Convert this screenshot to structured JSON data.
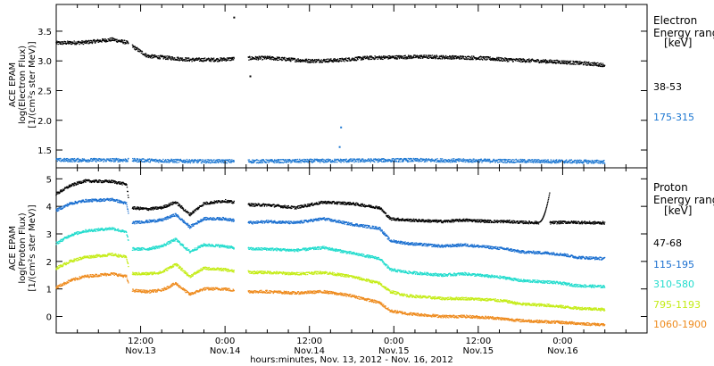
{
  "chart_data": [
    {
      "type": "scatter",
      "panel": "electron",
      "ylabel_lines": [
        "ACE EPAM",
        "log(Electron Flux)",
        "[1/(cm²s ster MeV)]"
      ],
      "legend_title": [
        "Electron",
        "Energy range",
        "[keV]"
      ],
      "ylim": [
        1.2,
        3.95
      ],
      "yticks": [
        1.5,
        2.0,
        2.5,
        3.0,
        3.5
      ],
      "ytick_labels": [
        "1.5",
        "2.0",
        "2.5",
        "3.0",
        "3.5"
      ],
      "series": [
        {
          "name": "38-53",
          "color": "#000000",
          "anchors": [
            [
              0,
              3.3
            ],
            [
              4,
              3.31
            ],
            [
              8,
              3.36
            ],
            [
              10,
              3.31
            ],
            [
              13,
              3.08
            ],
            [
              16,
              3.05
            ],
            [
              19,
              3.02
            ],
            [
              23,
              3.02
            ],
            [
              26,
              3.04
            ],
            [
              30,
              3.05
            ],
            [
              36,
              3.0
            ],
            [
              40,
              3.01
            ],
            [
              44,
              3.05
            ],
            [
              48,
              3.06
            ],
            [
              52,
              3.07
            ],
            [
              56,
              3.06
            ],
            [
              60,
              3.05
            ],
            [
              64,
              3.02
            ],
            [
              68,
              3.0
            ],
            [
              72,
              2.98
            ],
            [
              76,
              2.95
            ],
            [
              78,
              2.93
            ]
          ]
        },
        {
          "name": "175-315",
          "color": "#1e78d2",
          "anchors": [
            [
              0,
              1.33
            ],
            [
              10,
              1.33
            ],
            [
              20,
              1.31
            ],
            [
              30,
              1.31
            ],
            [
              40,
              1.32
            ],
            [
              50,
              1.33
            ],
            [
              60,
              1.32
            ],
            [
              70,
              1.31
            ],
            [
              78,
              1.3
            ]
          ]
        }
      ],
      "outliers": [
        [
          25.3,
          3.73
        ],
        [
          40.5,
          1.88
        ],
        [
          40.3,
          1.55
        ],
        [
          27.6,
          2.74
        ]
      ]
    },
    {
      "type": "scatter",
      "panel": "proton",
      "ylabel_lines": [
        "ACE EPAM",
        "log(Proton Flux)",
        "[1/(cm²s ster MeV)]"
      ],
      "legend_title": [
        "Proton",
        "Energy range",
        "[keV]"
      ],
      "ylim": [
        -0.6,
        5.4
      ],
      "yticks": [
        0,
        1,
        2,
        3,
        4,
        5
      ],
      "ytick_labels": [
        "0",
        "1",
        "2",
        "3",
        "4",
        "5"
      ],
      "series": [
        {
          "name": "47-68",
          "color": "#000000",
          "anchors": [
            [
              0,
              4.45
            ],
            [
              2,
              4.75
            ],
            [
              4,
              4.92
            ],
            [
              8,
              4.9
            ],
            [
              10,
              4.8
            ],
            [
              10.5,
              3.95
            ],
            [
              13,
              3.9
            ],
            [
              15,
              3.95
            ],
            [
              17,
              4.15
            ],
            [
              19,
              3.7
            ],
            [
              21,
              4.1
            ],
            [
              24,
              4.2
            ],
            [
              25,
              4.15
            ],
            [
              28,
              4.05
            ],
            [
              30,
              4.05
            ],
            [
              34,
              3.95
            ],
            [
              38,
              4.15
            ],
            [
              42,
              4.1
            ],
            [
              46,
              3.95
            ],
            [
              47.5,
              3.55
            ],
            [
              50,
              3.5
            ],
            [
              55,
              3.45
            ],
            [
              58,
              3.5
            ],
            [
              62,
              3.45
            ],
            [
              64,
              3.45
            ],
            [
              66,
              3.42
            ],
            [
              70,
              3.4
            ],
            [
              72,
              3.42
            ],
            [
              74,
              3.42
            ],
            [
              76,
              3.4
            ],
            [
              78,
              3.4
            ]
          ]
        },
        {
          "name": "115-195",
          "color": "#1a6fd0",
          "anchors": [
            [
              0,
              3.85
            ],
            [
              2,
              4.1
            ],
            [
              4,
              4.2
            ],
            [
              8,
              4.25
            ],
            [
              10,
              4.1
            ],
            [
              10.5,
              3.4
            ],
            [
              13,
              3.45
            ],
            [
              15,
              3.5
            ],
            [
              17,
              3.7
            ],
            [
              19,
              3.25
            ],
            [
              21,
              3.55
            ],
            [
              24,
              3.55
            ],
            [
              25,
              3.5
            ],
            [
              28,
              3.4
            ],
            [
              30,
              3.45
            ],
            [
              34,
              3.4
            ],
            [
              38,
              3.55
            ],
            [
              42,
              3.35
            ],
            [
              46,
              3.2
            ],
            [
              47.5,
              2.75
            ],
            [
              50,
              2.65
            ],
            [
              55,
              2.55
            ],
            [
              58,
              2.6
            ],
            [
              62,
              2.5
            ],
            [
              64,
              2.45
            ],
            [
              66,
              2.35
            ],
            [
              70,
              2.3
            ],
            [
              72,
              2.25
            ],
            [
              74,
              2.15
            ],
            [
              76,
              2.12
            ],
            [
              78,
              2.1
            ]
          ]
        },
        {
          "name": "310-580",
          "color": "#22dccd",
          "anchors": [
            [
              0,
              2.65
            ],
            [
              2,
              2.95
            ],
            [
              4,
              3.1
            ],
            [
              8,
              3.2
            ],
            [
              10,
              3.05
            ],
            [
              10.5,
              2.45
            ],
            [
              13,
              2.45
            ],
            [
              15,
              2.55
            ],
            [
              17,
              2.8
            ],
            [
              19,
              2.35
            ],
            [
              21,
              2.6
            ],
            [
              24,
              2.55
            ],
            [
              25,
              2.5
            ],
            [
              28,
              2.45
            ],
            [
              30,
              2.45
            ],
            [
              34,
              2.4
            ],
            [
              38,
              2.5
            ],
            [
              42,
              2.3
            ],
            [
              46,
              2.1
            ],
            [
              47.5,
              1.7
            ],
            [
              50,
              1.6
            ],
            [
              55,
              1.5
            ],
            [
              58,
              1.55
            ],
            [
              62,
              1.45
            ],
            [
              64,
              1.4
            ],
            [
              66,
              1.3
            ],
            [
              70,
              1.25
            ],
            [
              72,
              1.2
            ],
            [
              74,
              1.12
            ],
            [
              76,
              1.1
            ],
            [
              78,
              1.08
            ]
          ]
        },
        {
          "name": "795-1193",
          "color": "#c4ec16",
          "anchors": [
            [
              0,
              1.75
            ],
            [
              2,
              2.0
            ],
            [
              4,
              2.15
            ],
            [
              8,
              2.25
            ],
            [
              10,
              2.15
            ],
            [
              10.5,
              1.55
            ],
            [
              13,
              1.55
            ],
            [
              15,
              1.6
            ],
            [
              17,
              1.9
            ],
            [
              19,
              1.45
            ],
            [
              21,
              1.75
            ],
            [
              24,
              1.7
            ],
            [
              25,
              1.65
            ],
            [
              28,
              1.6
            ],
            [
              30,
              1.6
            ],
            [
              34,
              1.55
            ],
            [
              38,
              1.6
            ],
            [
              42,
              1.45
            ],
            [
              46,
              1.2
            ],
            [
              47.5,
              0.9
            ],
            [
              50,
              0.75
            ],
            [
              55,
              0.65
            ],
            [
              58,
              0.65
            ],
            [
              62,
              0.6
            ],
            [
              64,
              0.55
            ],
            [
              66,
              0.45
            ],
            [
              70,
              0.4
            ],
            [
              72,
              0.35
            ],
            [
              74,
              0.3
            ],
            [
              76,
              0.28
            ],
            [
              78,
              0.25
            ]
          ]
        },
        {
          "name": "1060-1900",
          "color": "#ee8a1c",
          "anchors": [
            [
              0,
              1.05
            ],
            [
              2,
              1.3
            ],
            [
              4,
              1.45
            ],
            [
              8,
              1.55
            ],
            [
              10,
              1.45
            ],
            [
              10.5,
              0.95
            ],
            [
              13,
              0.9
            ],
            [
              15,
              0.95
            ],
            [
              17,
              1.2
            ],
            [
              19,
              0.8
            ],
            [
              21,
              1.0
            ],
            [
              24,
              1.0
            ],
            [
              25,
              0.95
            ],
            [
              28,
              0.9
            ],
            [
              30,
              0.9
            ],
            [
              34,
              0.85
            ],
            [
              38,
              0.9
            ],
            [
              42,
              0.75
            ],
            [
              46,
              0.5
            ],
            [
              47.5,
              0.2
            ],
            [
              50,
              0.1
            ],
            [
              55,
              0.0
            ],
            [
              58,
              0.0
            ],
            [
              62,
              -0.05
            ],
            [
              64,
              -0.1
            ],
            [
              66,
              -0.15
            ],
            [
              70,
              -0.2
            ],
            [
              72,
              -0.22
            ],
            [
              74,
              -0.25
            ],
            [
              76,
              -0.28
            ],
            [
              78,
              -0.3
            ]
          ]
        }
      ],
      "spike": {
        "start": 68.6,
        "end": 70.2,
        "peak": 4.55,
        "base": 3.42
      }
    }
  ],
  "x_axis": {
    "label": "hours:minutes, Nov. 13, 2012 - Nov. 16, 2012",
    "range_hours": [
      0,
      84
    ],
    "ticks": [
      {
        "hour": 12,
        "time": "12:00",
        "date": "Nov.13"
      },
      {
        "hour": 24,
        "time": "0:00",
        "date": "Nov.14"
      },
      {
        "hour": 36,
        "time": "12:00",
        "date": "Nov.14"
      },
      {
        "hour": 48,
        "time": "0:00",
        "date": "Nov.15"
      },
      {
        "hour": 60,
        "time": "12:00",
        "date": "Nov.15"
      },
      {
        "hour": 72,
        "time": "0:00",
        "date": "Nov.16"
      }
    ],
    "minor_tick_every_hours": 3
  }
}
